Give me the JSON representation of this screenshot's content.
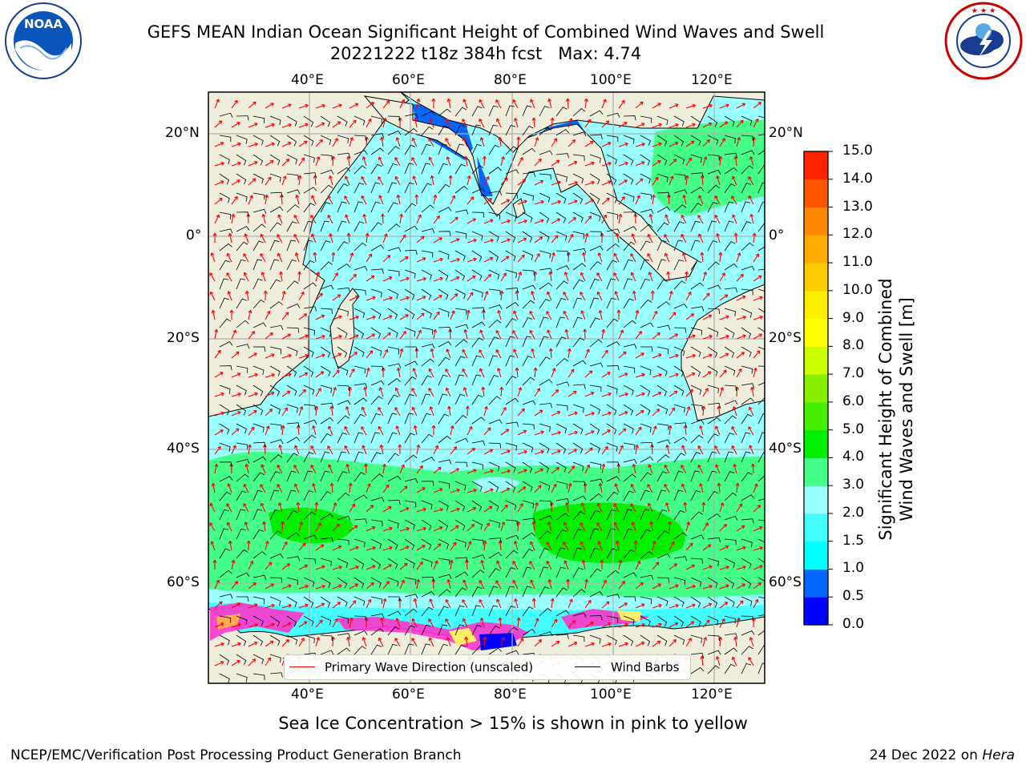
{
  "title": {
    "line1": "GEFS MEAN Indian Ocean Significant Height of Combined Wind Waves and Swell",
    "line2": "20221222 t18z 384h fcst   Max: 4.74"
  },
  "logos": {
    "left": {
      "name": "NOAA",
      "ring_text": "NATIONAL OCEANIC AND ATMOSPHERIC ADMINISTRATION · U.S. DEPARTMENT OF COMMERCE"
    },
    "right": {
      "ring_text": "NATIONAL WEATHER SERVICE"
    }
  },
  "map": {
    "projection": "lat-lon",
    "lon_range": [
      20,
      130
    ],
    "lat_range": [
      -70,
      28
    ],
    "lon_ticks": [
      "40°E",
      "60°E",
      "80°E",
      "100°E",
      "120°E"
    ],
    "lat_ticks": [
      "20°N",
      "0°",
      "20°S",
      "40°S",
      "60°S"
    ],
    "grid": true,
    "land_color": "#efeedd",
    "sea_ice_colors": [
      "#ff33cc",
      "#ffaa55",
      "#ffee66"
    ]
  },
  "legend": {
    "placement": "bottom-center",
    "items": [
      {
        "label": "Primary Wave Direction (unscaled)",
        "color": "#ff0000"
      },
      {
        "label": "Wind Barbs",
        "color": "#000000"
      }
    ]
  },
  "colorbar": {
    "title_line1": "Significant Height of Combined",
    "title_line2": "Wind Waves and Swell [m]",
    "ticks": [
      "0.0",
      "0.5",
      "1.0",
      "1.5",
      "2.0",
      "3.0",
      "4.0",
      "5.0",
      "6.0",
      "7.0",
      "8.0",
      "9.0",
      "10.0",
      "11.0",
      "12.0",
      "13.0",
      "14.0",
      "15.0"
    ],
    "colors": [
      "#0000ff",
      "#0066ff",
      "#00ffff",
      "#44ffff",
      "#99ffff",
      "#44ff88",
      "#00ee00",
      "#44ee00",
      "#88ee00",
      "#ccff00",
      "#ffff00",
      "#ffee00",
      "#ffcc00",
      "#ffaa00",
      "#ff8800",
      "#ff5500",
      "#ff2200"
    ]
  },
  "subcaption": "Sea Ice Concentration > 15% is shown in pink to yellow",
  "footer": {
    "left": "NCEP/EMC/Verification Post Processing Product Generation Branch",
    "right_prefix": "24 Dec 2022 on ",
    "right_host": "Hera"
  }
}
